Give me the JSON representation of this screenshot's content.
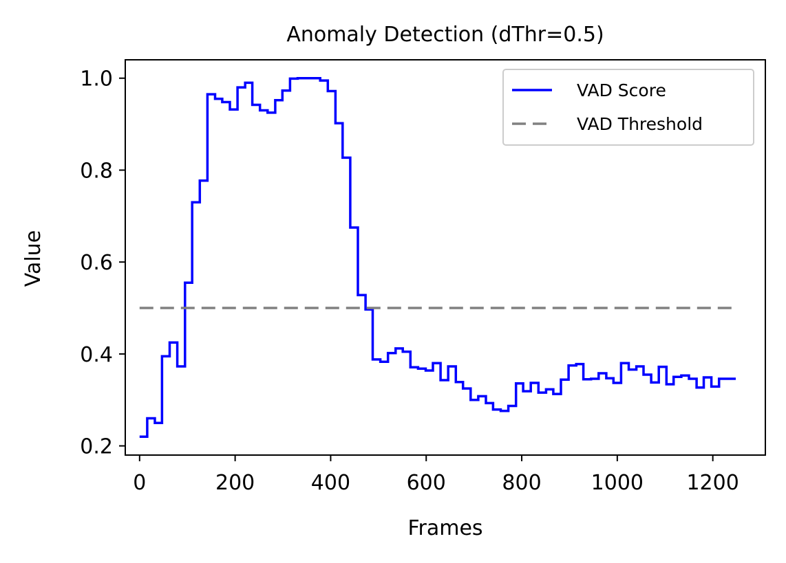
{
  "chart_data": {
    "type": "line",
    "title": "Anomaly Detection (dThr=0.5)",
    "xlabel": "Frames",
    "ylabel": "Value",
    "xlim": [
      -30,
      1310
    ],
    "ylim": [
      0.18,
      1.04
    ],
    "x_ticks": [
      0,
      200,
      400,
      600,
      800,
      1000,
      1200
    ],
    "y_ticks": [
      0.2,
      0.4,
      0.6,
      0.8,
      1.0
    ],
    "x_tick_labels": [
      "0",
      "200",
      "400",
      "600",
      "800",
      "1000",
      "1200"
    ],
    "y_tick_labels": [
      "0.2",
      "0.4",
      "0.6",
      "0.8",
      "1.0"
    ],
    "grid": false,
    "legend_position": "top-right",
    "series": [
      {
        "name": "VAD Score",
        "style": "steps",
        "color": "#0000ff",
        "points": [
          [
            0,
            0.22
          ],
          [
            16,
            0.22
          ],
          [
            16,
            0.26
          ],
          [
            32,
            0.26
          ],
          [
            32,
            0.25
          ],
          [
            47,
            0.25
          ],
          [
            47,
            0.395
          ],
          [
            63,
            0.395
          ],
          [
            63,
            0.425
          ],
          [
            79,
            0.425
          ],
          [
            79,
            0.373
          ],
          [
            95,
            0.373
          ],
          [
            95,
            0.555
          ],
          [
            110,
            0.555
          ],
          [
            110,
            0.73
          ],
          [
            126,
            0.73
          ],
          [
            126,
            0.777
          ],
          [
            142,
            0.777
          ],
          [
            142,
            0.965
          ],
          [
            158,
            0.965
          ],
          [
            158,
            0.955
          ],
          [
            173,
            0.955
          ],
          [
            173,
            0.948
          ],
          [
            189,
            0.948
          ],
          [
            189,
            0.932
          ],
          [
            205,
            0.932
          ],
          [
            205,
            0.98
          ],
          [
            221,
            0.98
          ],
          [
            221,
            0.99
          ],
          [
            236,
            0.99
          ],
          [
            236,
            0.942
          ],
          [
            252,
            0.942
          ],
          [
            252,
            0.93
          ],
          [
            268,
            0.93
          ],
          [
            268,
            0.925
          ],
          [
            284,
            0.925
          ],
          [
            284,
            0.952
          ],
          [
            299,
            0.952
          ],
          [
            299,
            0.973
          ],
          [
            315,
            0.973
          ],
          [
            315,
            0.999
          ],
          [
            331,
            0.999
          ],
          [
            331,
            1.0
          ],
          [
            347,
            1.0
          ],
          [
            347,
            1.0
          ],
          [
            362,
            1.0
          ],
          [
            362,
            1.0
          ],
          [
            378,
            1.0
          ],
          [
            378,
            0.995
          ],
          [
            394,
            0.995
          ],
          [
            394,
            0.972
          ],
          [
            410,
            0.972
          ],
          [
            410,
            0.902
          ],
          [
            425,
            0.902
          ],
          [
            425,
            0.827
          ],
          [
            441,
            0.827
          ],
          [
            441,
            0.675
          ],
          [
            457,
            0.675
          ],
          [
            457,
            0.528
          ],
          [
            473,
            0.528
          ],
          [
            473,
            0.497
          ],
          [
            488,
            0.497
          ],
          [
            488,
            0.388
          ],
          [
            504,
            0.388
          ],
          [
            504,
            0.383
          ],
          [
            520,
            0.383
          ],
          [
            520,
            0.402
          ],
          [
            536,
            0.402
          ],
          [
            536,
            0.412
          ],
          [
            551,
            0.412
          ],
          [
            551,
            0.405
          ],
          [
            567,
            0.405
          ],
          [
            567,
            0.371
          ],
          [
            583,
            0.371
          ],
          [
            583,
            0.368
          ],
          [
            599,
            0.368
          ],
          [
            599,
            0.364
          ],
          [
            614,
            0.364
          ],
          [
            614,
            0.38
          ],
          [
            630,
            0.38
          ],
          [
            630,
            0.343
          ],
          [
            646,
            0.343
          ],
          [
            646,
            0.373
          ],
          [
            662,
            0.373
          ],
          [
            662,
            0.339
          ],
          [
            677,
            0.339
          ],
          [
            677,
            0.325
          ],
          [
            693,
            0.325
          ],
          [
            693,
            0.3
          ],
          [
            709,
            0.3
          ],
          [
            709,
            0.308
          ],
          [
            725,
            0.308
          ],
          [
            725,
            0.293
          ],
          [
            740,
            0.293
          ],
          [
            740,
            0.279
          ],
          [
            756,
            0.279
          ],
          [
            756,
            0.276
          ],
          [
            772,
            0.276
          ],
          [
            772,
            0.287
          ],
          [
            788,
            0.287
          ],
          [
            788,
            0.336
          ],
          [
            803,
            0.336
          ],
          [
            803,
            0.319
          ],
          [
            819,
            0.319
          ],
          [
            819,
            0.337
          ],
          [
            835,
            0.337
          ],
          [
            835,
            0.316
          ],
          [
            851,
            0.316
          ],
          [
            851,
            0.323
          ],
          [
            866,
            0.323
          ],
          [
            866,
            0.313
          ],
          [
            882,
            0.313
          ],
          [
            882,
            0.344
          ],
          [
            898,
            0.344
          ],
          [
            898,
            0.375
          ],
          [
            914,
            0.375
          ],
          [
            914,
            0.378
          ],
          [
            929,
            0.378
          ],
          [
            929,
            0.345
          ],
          [
            945,
            0.345
          ],
          [
            945,
            0.346
          ],
          [
            961,
            0.346
          ],
          [
            961,
            0.358
          ],
          [
            977,
            0.358
          ],
          [
            977,
            0.347
          ],
          [
            992,
            0.347
          ],
          [
            992,
            0.337
          ],
          [
            1008,
            0.337
          ],
          [
            1008,
            0.38
          ],
          [
            1024,
            0.38
          ],
          [
            1024,
            0.366
          ],
          [
            1040,
            0.366
          ],
          [
            1040,
            0.373
          ],
          [
            1055,
            0.373
          ],
          [
            1055,
            0.355
          ],
          [
            1071,
            0.355
          ],
          [
            1071,
            0.338
          ],
          [
            1087,
            0.338
          ],
          [
            1087,
            0.372
          ],
          [
            1103,
            0.372
          ],
          [
            1103,
            0.334
          ],
          [
            1118,
            0.334
          ],
          [
            1118,
            0.35
          ],
          [
            1134,
            0.35
          ],
          [
            1134,
            0.353
          ],
          [
            1150,
            0.353
          ],
          [
            1150,
            0.346
          ],
          [
            1166,
            0.346
          ],
          [
            1166,
            0.327
          ],
          [
            1181,
            0.327
          ],
          [
            1181,
            0.349
          ],
          [
            1197,
            0.349
          ],
          [
            1197,
            0.329
          ],
          [
            1213,
            0.329
          ],
          [
            1213,
            0.346
          ],
          [
            1248,
            0.346
          ]
        ]
      },
      {
        "name": "VAD Threshold",
        "style": "dashed",
        "color": "#808080",
        "points": [
          [
            0,
            0.5
          ],
          [
            1248,
            0.5
          ]
        ]
      }
    ]
  }
}
